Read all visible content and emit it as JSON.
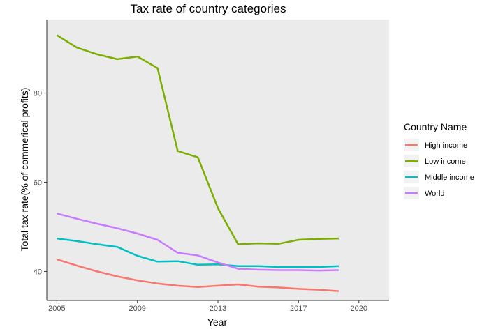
{
  "chart_data": {
    "type": "line",
    "title": "Tax rate of country categories",
    "xlabel": "Year",
    "ylabel": "Total tax rate(% of commerical profits)",
    "xlim": [
      2004.5,
      2021.5
    ],
    "ylim": [
      33.5,
      96.5
    ],
    "xticks": [
      2005,
      2009,
      2013,
      2017,
      2020
    ],
    "yticks": [
      40,
      60,
      80
    ],
    "grid": false,
    "x": [
      2005,
      2006,
      2007,
      2008,
      2009,
      2010,
      2011,
      2012,
      2013,
      2014,
      2015,
      2016,
      2017,
      2018,
      2019
    ],
    "legend": {
      "title": "Country Name",
      "position": "right"
    },
    "series": [
      {
        "name": "High income",
        "color": "#F8766D",
        "values": [
          42.7,
          41.3,
          40.0,
          38.9,
          38.0,
          37.3,
          36.8,
          36.5,
          36.8,
          37.1,
          36.6,
          36.4,
          36.1,
          35.9,
          35.6
        ]
      },
      {
        "name": "Low income",
        "color": "#7CAE00",
        "values": [
          93.0,
          90.2,
          88.7,
          87.6,
          88.2,
          85.6,
          67.0,
          65.6,
          54.2,
          46.1,
          46.3,
          46.2,
          47.1,
          47.3,
          47.4
        ]
      },
      {
        "name": "Middle income",
        "color": "#00BFC4",
        "values": [
          47.4,
          46.8,
          46.1,
          45.5,
          43.5,
          42.2,
          42.3,
          41.5,
          41.6,
          41.2,
          41.2,
          41.0,
          41.0,
          41.0,
          41.2
        ]
      },
      {
        "name": "World",
        "color": "#C77CFF",
        "values": [
          53.0,
          51.8,
          50.7,
          49.7,
          48.5,
          47.1,
          44.2,
          43.6,
          42.0,
          40.6,
          40.4,
          40.3,
          40.3,
          40.2,
          40.3
        ]
      }
    ]
  }
}
